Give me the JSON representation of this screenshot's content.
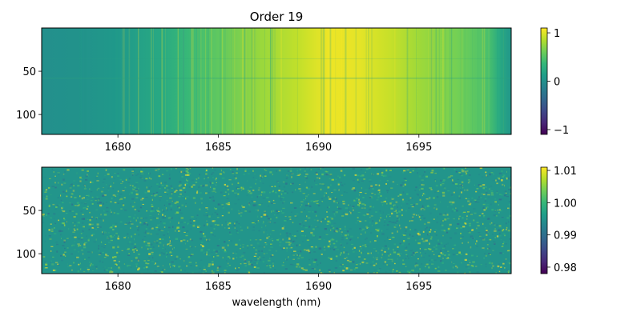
{
  "chart_data": [
    {
      "type": "heatmap",
      "title": "Order 19",
      "xlabel": "",
      "ylabel": "",
      "xlim": [
        1676.2,
        1699.6
      ],
      "ylim": [
        123,
        0
      ],
      "x_ticks": [
        1680,
        1685,
        1690,
        1695
      ],
      "x_tick_labels": [
        "1680",
        "1685",
        "1690",
        "1695"
      ],
      "y_ticks": [
        50,
        100
      ],
      "y_tick_labels": [
        "50",
        "100"
      ],
      "colormap": "viridis",
      "colorbar": {
        "min": -1.1,
        "max": 1.1,
        "ticks": [
          -1,
          0,
          1
        ],
        "tick_labels": [
          "−1",
          "0",
          "1"
        ]
      },
      "profile": {
        "description_of_values": "approximate column value vs wavelength",
        "x": [
          1676.2,
          1678.0,
          1680.0,
          1682.0,
          1683.5,
          1685.0,
          1687.0,
          1689.0,
          1690.5,
          1692.0,
          1693.5,
          1695.0,
          1697.0,
          1698.5,
          1699.0,
          1699.6
        ],
        "values": [
          0.0,
          0.02,
          0.08,
          0.22,
          0.38,
          0.55,
          0.75,
          0.9,
          1.05,
          1.02,
          0.92,
          0.78,
          0.62,
          0.45,
          0.25,
          0.05
        ]
      }
    },
    {
      "type": "heatmap",
      "title": "",
      "xlabel": "wavelength (nm)",
      "ylabel": "",
      "xlim": [
        1676.2,
        1699.6
      ],
      "ylim": [
        123,
        0
      ],
      "x_ticks": [
        1680,
        1685,
        1690,
        1695
      ],
      "x_tick_labels": [
        "1680",
        "1685",
        "1690",
        "1695"
      ],
      "y_ticks": [
        50,
        100
      ],
      "y_tick_labels": [
        "50",
        "100"
      ],
      "colormap": "viridis",
      "colorbar": {
        "min": 0.978,
        "max": 1.011,
        "ticks": [
          0.98,
          0.99,
          1.0,
          1.01
        ],
        "tick_labels": [
          "0.98",
          "0.99",
          "1.00",
          "1.01"
        ]
      },
      "mean_value": 1.0
    }
  ],
  "colors": {
    "viridis": [
      "#440154",
      "#482878",
      "#3e4989",
      "#31688e",
      "#26828e",
      "#1f9e89",
      "#35b779",
      "#6ece58",
      "#b5de2b",
      "#fde725"
    ]
  }
}
